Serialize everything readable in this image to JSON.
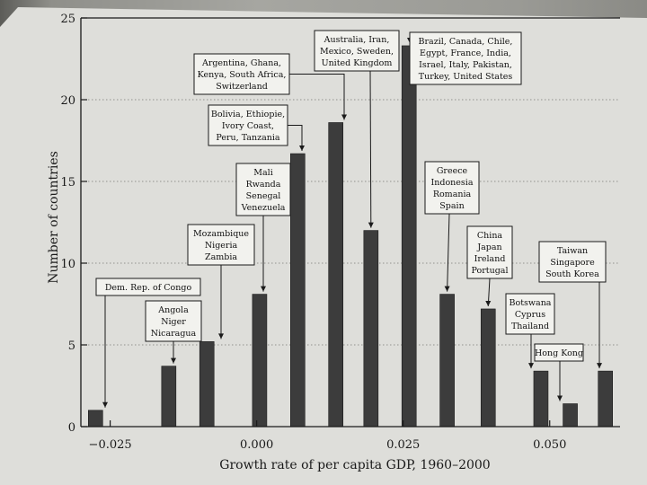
{
  "chart_data": {
    "type": "bar",
    "xlabel": "Growth rate of per capita GDP, 1960–2000",
    "ylabel": "Number of countries",
    "xlim": [
      -0.03,
      0.062
    ],
    "ylim": [
      0,
      25
    ],
    "x_ticks": [
      -0.025,
      0.0,
      0.025,
      0.05
    ],
    "x_tick_labels": [
      "−0.025",
      "0.000",
      "0.025",
      "0.050"
    ],
    "y_ticks": [
      0,
      5,
      10,
      15,
      20,
      25
    ],
    "y_tick_labels": [
      "0",
      "5",
      "10",
      "15",
      "20",
      "25"
    ],
    "grid": "horizontal dotted",
    "bar_color": "#3c3c3c",
    "x": [
      -0.0275,
      -0.015,
      -0.0085,
      0.0005,
      0.007,
      0.0135,
      0.0195,
      0.026,
      0.0325,
      0.0395,
      0.0485,
      0.0535,
      0.0595
    ],
    "values": [
      1,
      3.7,
      5.2,
      8.1,
      16.7,
      18.6,
      12,
      23.3,
      8.1,
      7.2,
      3.4,
      1.4,
      3.4
    ],
    "annotations": [
      {
        "bar": 0,
        "lines": [
          "Dem. Rep. of Congo"
        ]
      },
      {
        "bar": 1,
        "lines": [
          "Angola",
          "Niger",
          "Nicaragua"
        ]
      },
      {
        "bar": 2,
        "lines": [
          "Mozambique",
          "Nigeria",
          "Zambia"
        ]
      },
      {
        "bar": 3,
        "lines": [
          "Mali",
          "Rwanda",
          "Senegal",
          "Venezuela"
        ]
      },
      {
        "bar": 4,
        "lines": [
          "Bolivia, Ethiopie,",
          "Ivory Coast,",
          "Peru, Tanzania"
        ]
      },
      {
        "bar": 5,
        "lines": [
          "Argentina, Ghana,",
          "Kenya, South Africa,",
          "Switzerland"
        ]
      },
      {
        "bar": 6,
        "lines": [
          "Australia, Iran,",
          "Mexico, Sweden,",
          "United Kingdom"
        ]
      },
      {
        "bar": 7,
        "lines": [
          "Brazil, Canada, Chile,",
          "Egypt, France, India,",
          "Israel, Italy, Pakistan,",
          "Turkey, United States"
        ]
      },
      {
        "bar": 8,
        "lines": [
          "Greece",
          "Indonesia",
          "Romania",
          "Spain"
        ]
      },
      {
        "bar": 9,
        "lines": [
          "China",
          "Japan",
          "Ireland",
          "Portugal"
        ]
      },
      {
        "bar": 10,
        "lines": [
          "Botswana",
          "Cyprus",
          "Thailand"
        ]
      },
      {
        "bar": 11,
        "lines": [
          "Hong Kong"
        ]
      },
      {
        "bar": 12,
        "lines": [
          "Taiwan",
          "Singapore",
          "South Korea"
        ]
      }
    ]
  }
}
